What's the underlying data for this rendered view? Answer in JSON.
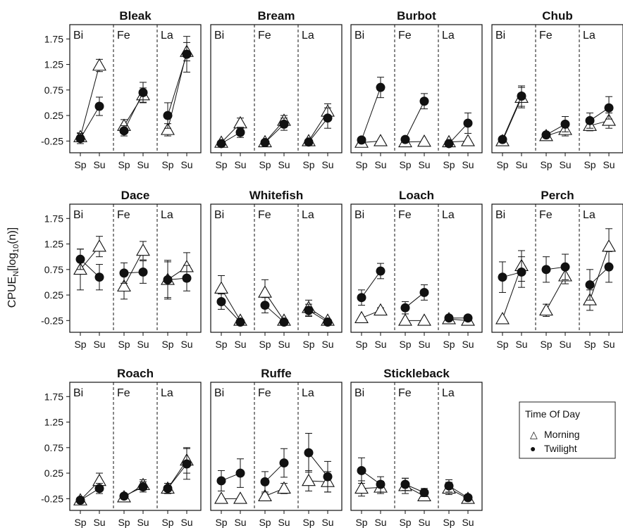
{
  "chart_data": {
    "type": "scatter",
    "ylabel": "CPUE",
    "ylabel_sub": "N",
    "ylabel_rest": "[log",
    "ylabel_sub2": "10",
    "ylabel_end": "(n)]",
    "y_ticks": [
      "-0.25",
      "0.25",
      "0.75",
      "1.25",
      "1.75"
    ],
    "y_tick_values": [
      -0.25,
      0.25,
      0.75,
      1.25,
      1.75
    ],
    "ylim": [
      -0.48,
      2.03
    ],
    "x_categories": [
      "Sp",
      "Su"
    ],
    "groups": [
      "Bi",
      "Fe",
      "La"
    ],
    "legend": {
      "title": "Time Of Day",
      "morning_label": "Morning",
      "twilight_label": "Twilight",
      "morning_symbol": "△",
      "twilight_symbol": "●"
    },
    "panels": [
      {
        "name": "Bleak",
        "morning": [
          [
            -0.17,
            0.05,
            0.08
          ],
          [
            1.23,
            0.12,
            0.12
          ],
          [
            0.05,
            0.12,
            0.12
          ],
          [
            0.65,
            0.14,
            0.14
          ],
          [
            -0.03,
            0.12,
            0.12
          ],
          [
            1.5,
            0.18,
            0.18
          ]
        ],
        "twilight": [
          [
            -0.2,
            0.1,
            0.1
          ],
          [
            0.43,
            0.18,
            0.18
          ],
          [
            -0.05,
            0.1,
            0.1
          ],
          [
            0.7,
            0.2,
            0.2
          ],
          [
            0.25,
            0.25,
            0.25
          ],
          [
            1.45,
            0.35,
            0.35
          ]
        ]
      },
      {
        "name": "Bream",
        "morning": [
          [
            -0.28,
            0.02,
            0.02
          ],
          [
            0.1,
            0.1,
            0.1
          ],
          [
            -0.27,
            0.02,
            0.02
          ],
          [
            0.15,
            0.1,
            0.1
          ],
          [
            -0.25,
            0.02,
            0.02
          ],
          [
            0.33,
            0.15,
            0.15
          ]
        ],
        "twilight": [
          [
            -0.3,
            0.03,
            0.03
          ],
          [
            -0.08,
            0.1,
            0.1
          ],
          [
            -0.28,
            0.03,
            0.03
          ],
          [
            0.08,
            0.12,
            0.12
          ],
          [
            -0.27,
            0.03,
            0.03
          ],
          [
            0.2,
            0.2,
            0.2
          ]
        ]
      },
      {
        "name": "Burbot",
        "morning": [
          [
            -0.28,
            0.02,
            0.02
          ],
          [
            -0.25,
            0.02,
            0.02
          ],
          [
            -0.27,
            0.02,
            0.02
          ],
          [
            -0.26,
            0.02,
            0.02
          ],
          [
            -0.27,
            0.02,
            0.02
          ],
          [
            -0.25,
            0.02,
            0.02
          ]
        ],
        "twilight": [
          [
            -0.23,
            0.05,
            0.05
          ],
          [
            0.8,
            0.2,
            0.2
          ],
          [
            -0.22,
            0.05,
            0.05
          ],
          [
            0.53,
            0.15,
            0.15
          ],
          [
            -0.3,
            0.02,
            0.02
          ],
          [
            0.1,
            0.2,
            0.2
          ]
        ]
      },
      {
        "name": "Chub",
        "morning": [
          [
            -0.25,
            0.02,
            0.02
          ],
          [
            0.6,
            0.2,
            0.2
          ],
          [
            -0.15,
            0.03,
            0.03
          ],
          [
            -0.03,
            0.12,
            0.12
          ],
          [
            0.05,
            0.1,
            0.1
          ],
          [
            0.15,
            0.15,
            0.15
          ]
        ],
        "twilight": [
          [
            -0.22,
            0.05,
            0.05
          ],
          [
            0.63,
            0.2,
            0.2
          ],
          [
            -0.13,
            0.05,
            0.05
          ],
          [
            0.08,
            0.15,
            0.15
          ],
          [
            0.15,
            0.15,
            0.15
          ],
          [
            0.4,
            0.22,
            0.22
          ]
        ]
      },
      {
        "name": "Dace",
        "morning": [
          [
            0.75,
            0.4,
            0.4
          ],
          [
            1.2,
            0.2,
            0.2
          ],
          [
            0.42,
            0.25,
            0.25
          ],
          [
            1.12,
            0.18,
            0.18
          ],
          [
            0.55,
            0.35,
            0.35
          ],
          [
            0.8,
            0.28,
            0.28
          ]
        ],
        "twilight": [
          [
            0.95,
            0.2,
            0.2
          ],
          [
            0.6,
            0.25,
            0.25
          ],
          [
            0.68,
            0.2,
            0.2
          ],
          [
            0.7,
            0.22,
            0.22
          ],
          [
            0.55,
            0.38,
            0.38
          ],
          [
            0.58,
            0.25,
            0.25
          ]
        ]
      },
      {
        "name": "Whitefish",
        "morning": [
          [
            0.38,
            0.25,
            0.25
          ],
          [
            -0.25,
            0.02,
            0.02
          ],
          [
            0.3,
            0.25,
            0.25
          ],
          [
            -0.25,
            0.02,
            0.02
          ],
          [
            0.0,
            0.15,
            0.15
          ],
          [
            -0.25,
            0.02,
            0.02
          ]
        ],
        "twilight": [
          [
            0.12,
            0.15,
            0.15
          ],
          [
            -0.28,
            0.02,
            0.02
          ],
          [
            0.05,
            0.15,
            0.15
          ],
          [
            -0.28,
            0.02,
            0.02
          ],
          [
            -0.05,
            0.12,
            0.12
          ],
          [
            -0.28,
            0.02,
            0.02
          ]
        ]
      },
      {
        "name": "Loach",
        "morning": [
          [
            -0.2,
            0.02,
            0.02
          ],
          [
            -0.05,
            0.05,
            0.05
          ],
          [
            -0.25,
            0.02,
            0.02
          ],
          [
            -0.25,
            0.02,
            0.02
          ],
          [
            -0.22,
            0.02,
            0.02
          ],
          [
            -0.25,
            0.02,
            0.02
          ]
        ],
        "twilight": [
          [
            0.2,
            0.15,
            0.15
          ],
          [
            0.72,
            0.15,
            0.15
          ],
          [
            0.0,
            0.12,
            0.12
          ],
          [
            0.3,
            0.15,
            0.15
          ],
          [
            -0.2,
            0.05,
            0.05
          ],
          [
            -0.2,
            0.05,
            0.05
          ]
        ]
      },
      {
        "name": "Perch",
        "morning": [
          [
            -0.22,
            0.02,
            0.02
          ],
          [
            0.82,
            0.3,
            0.3
          ],
          [
            -0.05,
            0.12,
            0.12
          ],
          [
            0.62,
            0.15,
            0.15
          ],
          [
            0.15,
            0.2,
            0.2
          ],
          [
            1.2,
            0.35,
            0.35
          ]
        ],
        "twilight": [
          [
            0.6,
            0.3,
            0.3
          ],
          [
            0.7,
            0.3,
            0.3
          ],
          [
            0.75,
            0.25,
            0.25
          ],
          [
            0.8,
            0.25,
            0.25
          ],
          [
            0.45,
            0.3,
            0.3
          ],
          [
            0.8,
            0.3,
            0.3
          ]
        ]
      },
      {
        "name": "Roach",
        "morning": [
          [
            -0.28,
            0.02,
            0.02
          ],
          [
            0.1,
            0.15,
            0.15
          ],
          [
            -0.22,
            0.05,
            0.05
          ],
          [
            0.02,
            0.1,
            0.1
          ],
          [
            -0.05,
            0.1,
            0.1
          ],
          [
            0.5,
            0.25,
            0.25
          ]
        ],
        "twilight": [
          [
            -0.28,
            0.03,
            0.03
          ],
          [
            -0.05,
            0.1,
            0.1
          ],
          [
            -0.2,
            0.05,
            0.05
          ],
          [
            -0.02,
            0.1,
            0.1
          ],
          [
            -0.05,
            0.1,
            0.1
          ],
          [
            0.43,
            0.3,
            0.3
          ]
        ]
      },
      {
        "name": "Ruffe",
        "morning": [
          [
            -0.25,
            0.02,
            0.02
          ],
          [
            -0.25,
            0.02,
            0.02
          ],
          [
            -0.2,
            0.05,
            0.05
          ],
          [
            -0.05,
            0.1,
            0.1
          ],
          [
            0.1,
            0.2,
            0.2
          ],
          [
            0.08,
            0.2,
            0.2
          ]
        ],
        "twilight": [
          [
            0.1,
            0.2,
            0.2
          ],
          [
            0.25,
            0.28,
            0.28
          ],
          [
            0.08,
            0.2,
            0.2
          ],
          [
            0.45,
            0.28,
            0.28
          ],
          [
            0.65,
            0.38,
            0.38
          ],
          [
            0.18,
            0.3,
            0.3
          ]
        ]
      },
      {
        "name": "Stickleback",
        "morning": [
          [
            -0.05,
            0.15,
            0.15
          ],
          [
            -0.03,
            0.12,
            0.12
          ],
          [
            0.0,
            0.15,
            0.15
          ],
          [
            -0.2,
            0.05,
            0.05
          ],
          [
            -0.05,
            0.12,
            0.12
          ],
          [
            -0.25,
            0.02,
            0.02
          ]
        ],
        "twilight": [
          [
            0.3,
            0.25,
            0.25
          ],
          [
            0.03,
            0.15,
            0.15
          ],
          [
            0.03,
            0.12,
            0.12
          ],
          [
            -0.13,
            0.08,
            0.08
          ],
          [
            0.0,
            0.12,
            0.12
          ],
          [
            -0.23,
            0.02,
            0.02
          ]
        ]
      }
    ]
  }
}
